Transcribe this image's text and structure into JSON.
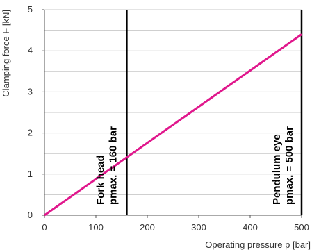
{
  "chart_data": {
    "type": "line",
    "title": "",
    "xlabel": "Operating pressure p [bar]",
    "ylabel": "Clamping force F [kN]",
    "xlim": [
      0,
      500
    ],
    "ylim": [
      0,
      5
    ],
    "x_ticks": [
      0,
      100,
      200,
      300,
      400,
      500
    ],
    "y_ticks": [
      0,
      1,
      2,
      3,
      4,
      5
    ],
    "grid": true,
    "line_color": "#e0178c",
    "series": [
      {
        "x": [
          0,
          500
        ],
        "y": [
          0,
          4.4
        ]
      }
    ],
    "reference_lines": [
      {
        "x": 160,
        "label_line1": "Fork head",
        "label_line2": "pmax. = 160 bar"
      },
      {
        "x": 500,
        "label_line1": "Pendulum eye",
        "label_line2": "pmax. = 500 bar"
      }
    ]
  }
}
